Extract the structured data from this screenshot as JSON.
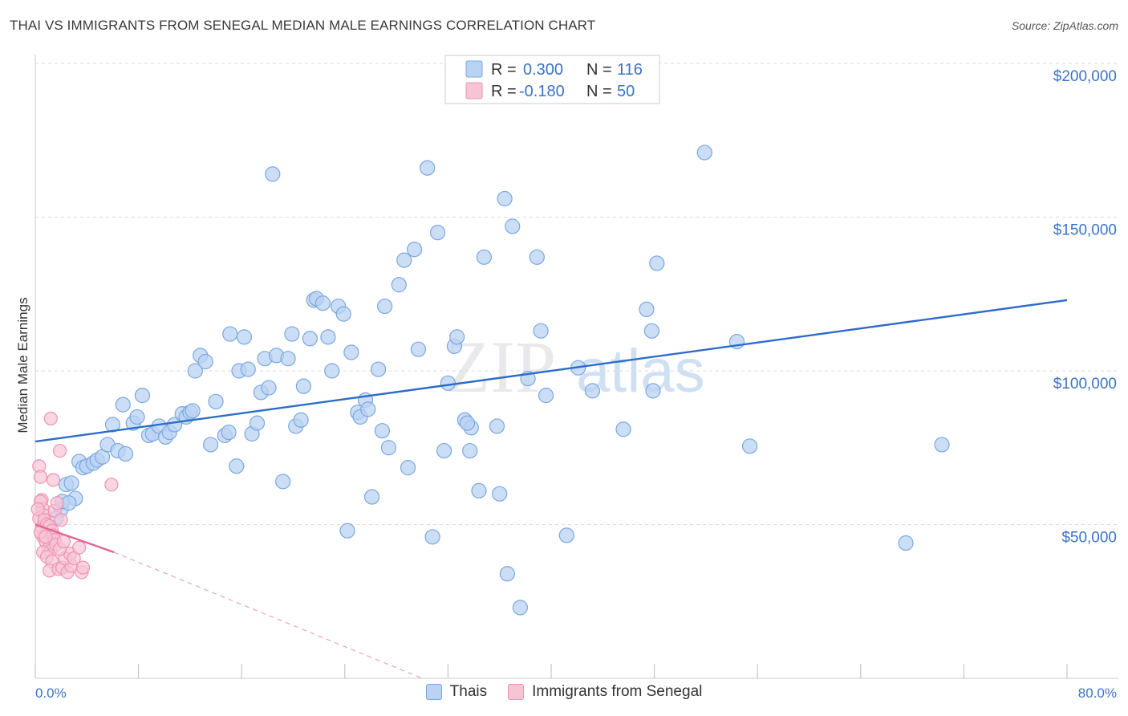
{
  "header": {
    "title": "THAI VS IMMIGRANTS FROM SENEGAL MEDIAN MALE EARNINGS CORRELATION CHART",
    "source": "Source: ZipAtlas.com"
  },
  "watermark": {
    "zip": "ZIP",
    "atlas": "atlas"
  },
  "legend": {
    "r_label": "R =",
    "n_label": "N =",
    "rows": [
      {
        "r": "0.300",
        "n": "116"
      },
      {
        "r": "-0.180",
        "n": "50"
      }
    ]
  },
  "colors": {
    "thai_fill": "#b9d3f2",
    "thai_stroke": "#7aa7e0",
    "thai_line": "#2d6cc9",
    "sen_fill": "#f7c4d4",
    "sen_stroke": "#ef93b3",
    "sen_line": "#e36493",
    "axis_text": "#3b73c8",
    "grid": "#dcdcdc"
  },
  "chart_data": {
    "type": "scatter",
    "title": "THAI VS IMMIGRANTS FROM SENEGAL MEDIAN MALE EARNINGS CORRELATION CHART",
    "xlabel": "",
    "ylabel": "Median Male Earnings",
    "xlim": [
      0,
      80
    ],
    "ylim": [
      0,
      200000
    ],
    "x_tick_labels": [
      "0.0%",
      "80.0%"
    ],
    "y_ticks": [
      50000,
      100000,
      150000,
      200000
    ],
    "y_tick_labels": [
      "$50,000",
      "$100,000",
      "$150,000",
      "$200,000"
    ],
    "legend_position": "bottom-center",
    "series": [
      {
        "name": "Thais",
        "r": 0.3,
        "n": 116,
        "trend": {
          "x": [
            0,
            80
          ],
          "y": [
            77000,
            123000
          ],
          "dashed_extension": false
        },
        "points": [
          [
            2.0,
            55000
          ],
          [
            2.1,
            57500
          ],
          [
            2.4,
            63000
          ],
          [
            2.8,
            63500
          ],
          [
            3.1,
            58500
          ],
          [
            3.4,
            70500
          ],
          [
            3.7,
            68500
          ],
          [
            4.0,
            69000
          ],
          [
            4.5,
            70000
          ],
          [
            4.8,
            71000
          ],
          [
            5.2,
            72000
          ],
          [
            5.6,
            76000
          ],
          [
            6.0,
            82500
          ],
          [
            6.4,
            74000
          ],
          [
            6.8,
            89000
          ],
          [
            7.0,
            73000
          ],
          [
            7.6,
            83000
          ],
          [
            7.9,
            85000
          ],
          [
            8.3,
            92000
          ],
          [
            8.8,
            79000
          ],
          [
            9.1,
            79500
          ],
          [
            9.6,
            82000
          ],
          [
            10.1,
            78500
          ],
          [
            10.4,
            80000
          ],
          [
            10.8,
            82500
          ],
          [
            11.4,
            86000
          ],
          [
            11.7,
            85000
          ],
          [
            12.0,
            86500
          ],
          [
            12.4,
            100000
          ],
          [
            12.8,
            105000
          ],
          [
            13.2,
            103000
          ],
          [
            13.6,
            76000
          ],
          [
            14.0,
            90000
          ],
          [
            14.7,
            79000
          ],
          [
            15.0,
            80000
          ],
          [
            15.1,
            112000
          ],
          [
            15.6,
            69000
          ],
          [
            15.8,
            100000
          ],
          [
            16.2,
            111000
          ],
          [
            16.5,
            100500
          ],
          [
            16.8,
            79500
          ],
          [
            17.2,
            83000
          ],
          [
            17.5,
            93000
          ],
          [
            17.8,
            104000
          ],
          [
            18.1,
            94500
          ],
          [
            18.4,
            164000
          ],
          [
            18.7,
            105000
          ],
          [
            19.2,
            64000
          ],
          [
            19.6,
            104000
          ],
          [
            19.9,
            112000
          ],
          [
            20.2,
            82000
          ],
          [
            20.6,
            84000
          ],
          [
            20.8,
            95000
          ],
          [
            21.3,
            110500
          ],
          [
            21.6,
            123000
          ],
          [
            21.8,
            123500
          ],
          [
            22.3,
            122000
          ],
          [
            22.7,
            111000
          ],
          [
            23.0,
            100000
          ],
          [
            23.5,
            121000
          ],
          [
            23.9,
            118500
          ],
          [
            24.2,
            48000
          ],
          [
            24.5,
            106000
          ],
          [
            25.0,
            86500
          ],
          [
            25.2,
            85000
          ],
          [
            25.6,
            90500
          ],
          [
            26.1,
            59000
          ],
          [
            26.6,
            100500
          ],
          [
            26.9,
            80500
          ],
          [
            27.1,
            121000
          ],
          [
            27.4,
            75000
          ],
          [
            28.2,
            128000
          ],
          [
            28.6,
            136000
          ],
          [
            28.9,
            68500
          ],
          [
            29.4,
            139500
          ],
          [
            29.7,
            107000
          ],
          [
            30.4,
            166000
          ],
          [
            30.8,
            46000
          ],
          [
            31.2,
            145000
          ],
          [
            31.7,
            74000
          ],
          [
            32.0,
            96000
          ],
          [
            32.5,
            108000
          ],
          [
            32.7,
            111000
          ],
          [
            33.3,
            84000
          ],
          [
            33.7,
            74000
          ],
          [
            33.8,
            81500
          ],
          [
            34.4,
            61000
          ],
          [
            34.8,
            137000
          ],
          [
            35.8,
            82000
          ],
          [
            36.0,
            60000
          ],
          [
            36.4,
            156000
          ],
          [
            36.6,
            34000
          ],
          [
            37.0,
            147000
          ],
          [
            37.6,
            23000
          ],
          [
            38.2,
            97500
          ],
          [
            38.9,
            137000
          ],
          [
            39.2,
            113000
          ],
          [
            41.2,
            46500
          ],
          [
            43.2,
            93500
          ],
          [
            45.6,
            81000
          ],
          [
            47.4,
            120000
          ],
          [
            47.8,
            113000
          ],
          [
            47.9,
            93500
          ],
          [
            48.2,
            135000
          ],
          [
            51.9,
            171000
          ],
          [
            54.4,
            109500
          ],
          [
            55.4,
            75500
          ],
          [
            67.5,
            44000
          ],
          [
            70.3,
            76000
          ],
          [
            1.6,
            52000
          ],
          [
            2.6,
            57000
          ],
          [
            12.2,
            87000
          ],
          [
            25.8,
            87500
          ],
          [
            42.1,
            101000
          ],
          [
            39.6,
            92000
          ],
          [
            33.5,
            83000
          ]
        ]
      },
      {
        "name": "Immigrants from Senegal",
        "r": -0.18,
        "n": 50,
        "trend": {
          "x": [
            0,
            6.1
          ],
          "y": [
            50000,
            41000
          ],
          "dashed_extension_to": [
            30,
            0
          ]
        },
        "points": [
          [
            0.3,
            69000
          ],
          [
            0.4,
            65500
          ],
          [
            0.5,
            58000
          ],
          [
            0.6,
            55000
          ],
          [
            0.7,
            53000
          ],
          [
            0.8,
            50500
          ],
          [
            0.9,
            48500
          ],
          [
            1.0,
            47000
          ],
          [
            1.1,
            45500
          ],
          [
            1.2,
            44000
          ],
          [
            0.3,
            52000
          ],
          [
            0.5,
            49000
          ],
          [
            0.6,
            46000
          ],
          [
            0.8,
            44500
          ],
          [
            1.0,
            42000
          ],
          [
            1.2,
            41500
          ],
          [
            0.4,
            57500
          ],
          [
            0.7,
            51500
          ],
          [
            0.9,
            50000
          ],
          [
            1.1,
            49500
          ],
          [
            1.3,
            48000
          ],
          [
            1.4,
            46500
          ],
          [
            1.5,
            45000
          ],
          [
            1.6,
            43500
          ],
          [
            0.6,
            41000
          ],
          [
            0.9,
            39500
          ],
          [
            1.3,
            38000
          ],
          [
            1.1,
            35000
          ],
          [
            1.8,
            35500
          ],
          [
            2.1,
            36000
          ],
          [
            2.5,
            34500
          ],
          [
            2.8,
            36500
          ],
          [
            3.6,
            34500
          ],
          [
            3.7,
            36000
          ],
          [
            2.3,
            39000
          ],
          [
            2.7,
            40500
          ],
          [
            3.0,
            39000
          ],
          [
            3.4,
            42500
          ],
          [
            1.9,
            42000
          ],
          [
            2.2,
            44500
          ],
          [
            1.2,
            84500
          ],
          [
            1.4,
            64500
          ],
          [
            1.9,
            74000
          ],
          [
            5.9,
            63000
          ],
          [
            1.5,
            54500
          ],
          [
            1.7,
            57000
          ],
          [
            2.0,
            51500
          ],
          [
            0.2,
            55000
          ],
          [
            0.4,
            47500
          ],
          [
            0.8,
            46000
          ]
        ]
      }
    ]
  },
  "bottom_legend": {
    "items": [
      "Thais",
      "Immigrants from Senegal"
    ]
  }
}
